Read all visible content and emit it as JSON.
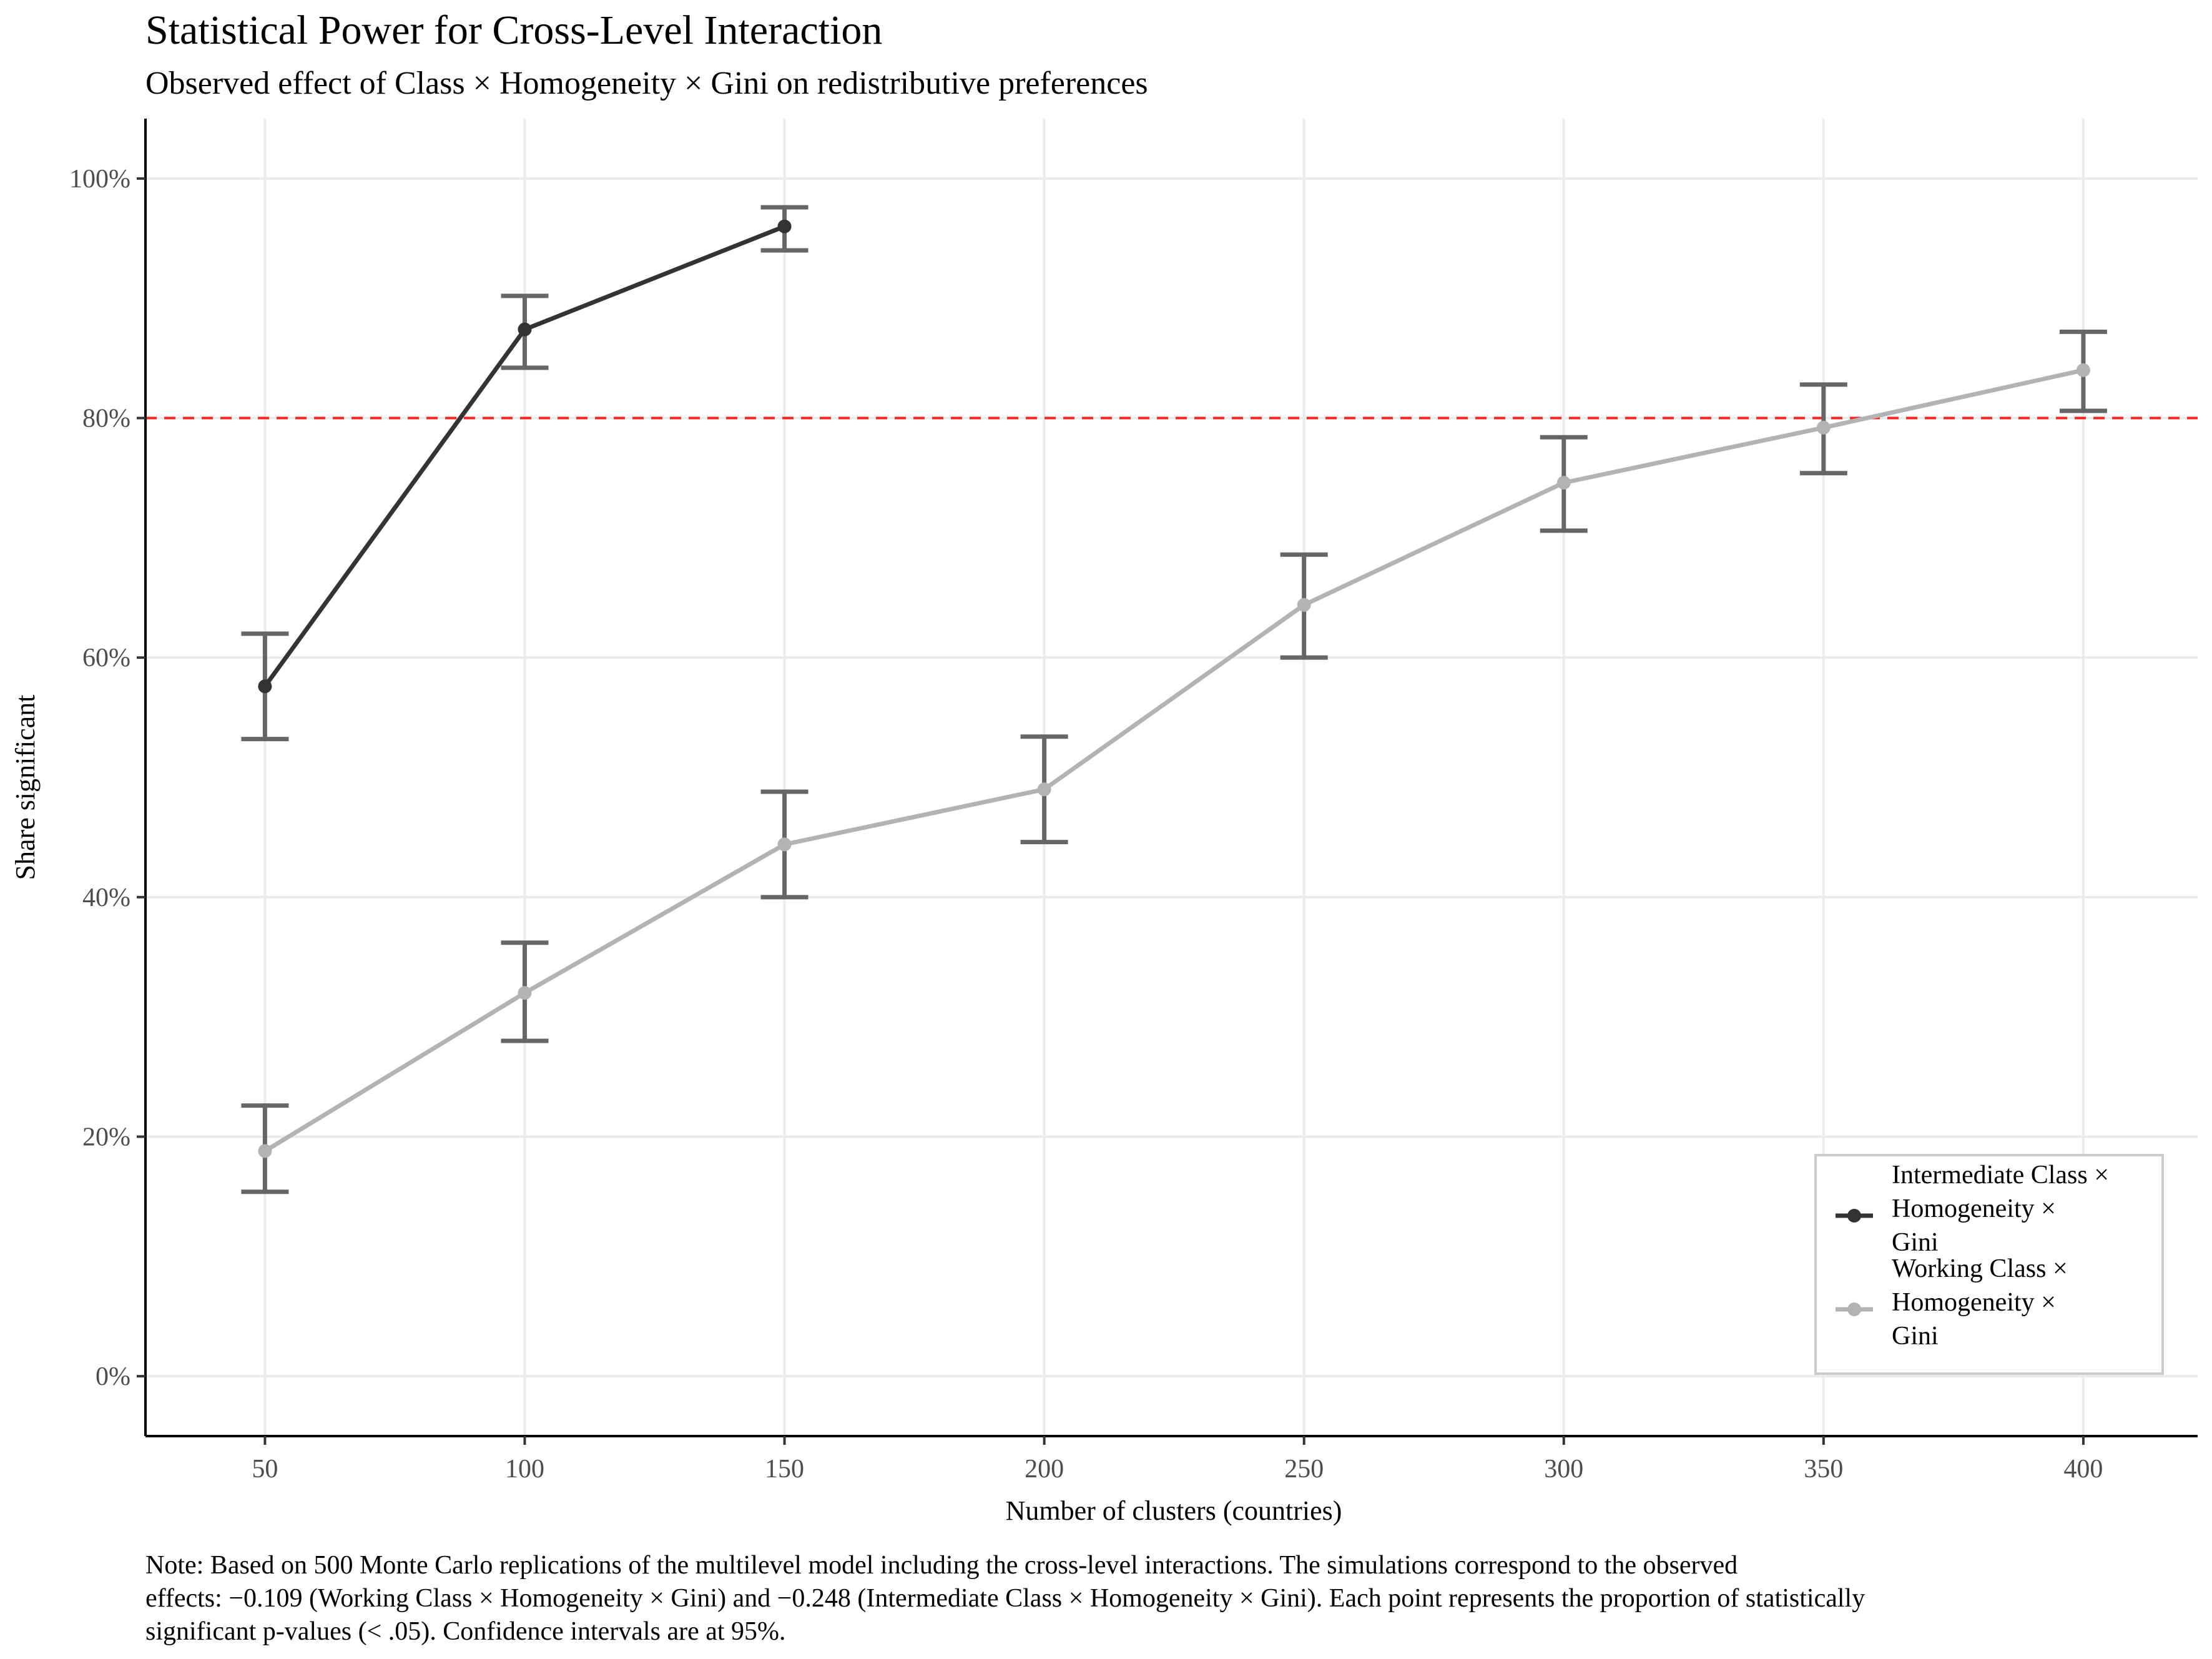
{
  "chart_data": {
    "type": "line",
    "title": "Statistical Power for Cross-Level Interaction",
    "subtitle": "Observed effect of Class × Homogeneity × Gini on redistributive preferences",
    "xlabel": "Number of clusters (countries)",
    "ylabel": "Share significant",
    "xlim": [
      27,
      422
    ],
    "ylim": [
      -0.05,
      1.05
    ],
    "x_ticks": [
      50,
      100,
      150,
      200,
      250,
      300,
      350,
      400
    ],
    "x_tick_labels": [
      "50",
      "100",
      "150",
      "200",
      "250",
      "300",
      "350",
      "400"
    ],
    "y_ticks": [
      0,
      0.2,
      0.4,
      0.6,
      0.8,
      1.0
    ],
    "y_tick_labels": [
      "0%",
      "20%",
      "40%",
      "60%",
      "80%",
      "100%"
    ],
    "grid": true,
    "reference_line": {
      "y": 0.8,
      "color": "#ff2020",
      "style": "dashed"
    },
    "legend_position": "bottom-right",
    "series": [
      {
        "name": "Intermediate Class × Homogeneity × Gini",
        "legend_lines": [
          "Intermediate Class ×",
          "Homogeneity ×",
          "Gini"
        ],
        "color": "#333333",
        "x": [
          50,
          100,
          150
        ],
        "y": [
          0.576,
          0.874,
          0.96
        ],
        "ci_low": [
          0.532,
          0.842,
          0.94
        ],
        "ci_high": [
          0.62,
          0.902,
          0.976
        ]
      },
      {
        "name": "Working Class × Homogeneity × Gini",
        "legend_lines": [
          "Working Class ×",
          "Homogeneity ×",
          "Gini"
        ],
        "color": "#b3b3b3",
        "x": [
          50,
          100,
          150,
          200,
          250,
          300,
          350,
          400
        ],
        "y": [
          0.188,
          0.32,
          0.444,
          0.49,
          0.644,
          0.746,
          0.792,
          0.84
        ],
        "ci_low": [
          0.154,
          0.28,
          0.4,
          0.446,
          0.6,
          0.706,
          0.754,
          0.806
        ],
        "ci_high": [
          0.226,
          0.362,
          0.488,
          0.534,
          0.686,
          0.784,
          0.828,
          0.872
        ]
      }
    ],
    "errorbar_color": "#666666",
    "note_lines": [
      "Note: Based on 500 Monte Carlo replications of the multilevel model including the cross-level interactions. The simulations correspond to the observed",
      "effects: −0.109 (Working Class × Homogeneity × Gini) and −0.248 (Intermediate Class × Homogeneity × Gini). Each point represents the proportion of statistically",
      "significant p-values (< .05). Confidence intervals are at 95%."
    ]
  }
}
